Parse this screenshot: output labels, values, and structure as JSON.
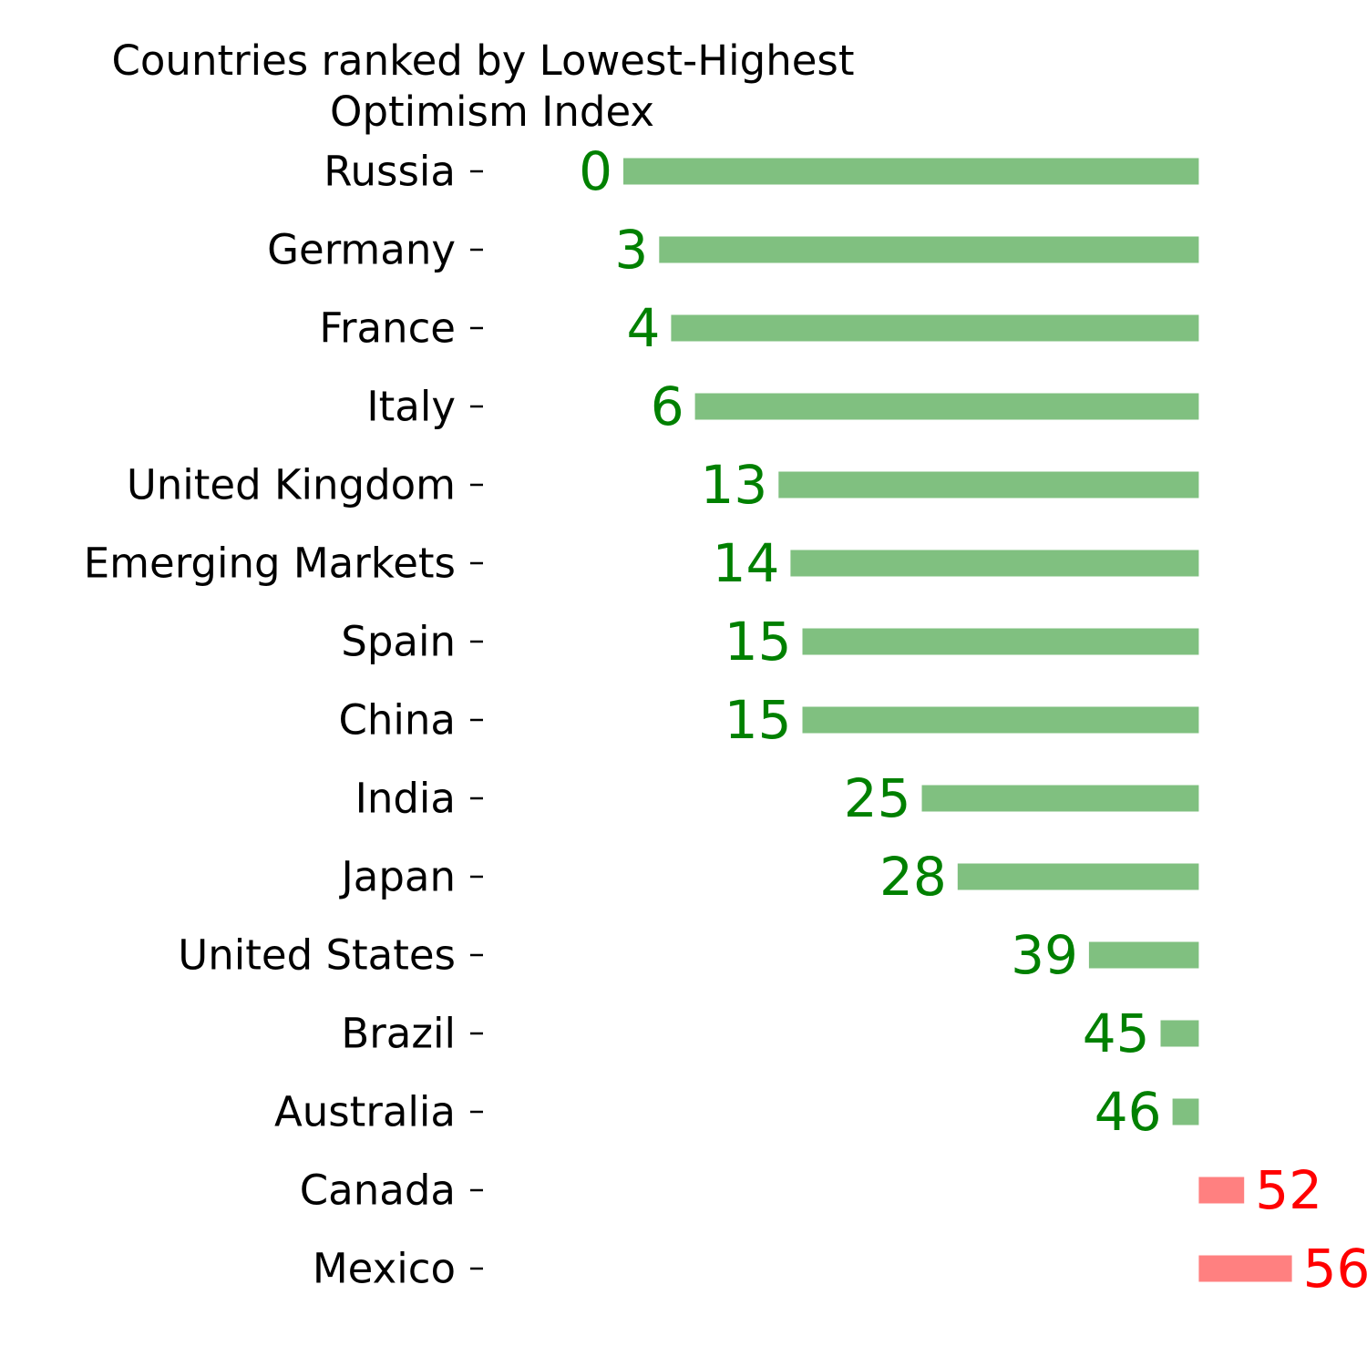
{
  "chart_data": {
    "type": "bar",
    "orientation": "horizontal",
    "title": "Countries ranked by Lowest-Highest Optimism Index",
    "title_lines": [
      "Countries ranked by Lowest-Highest",
      "Optimism Index"
    ],
    "categories": [
      "Russia",
      "Germany",
      "France",
      "Italy",
      "United Kingdom",
      "Emerging Markets",
      "Spain",
      "China",
      "India",
      "Japan",
      "United States",
      "Brazil",
      "Australia",
      "Canada",
      "Mexico"
    ],
    "values": [
      0,
      3,
      4,
      6,
      13,
      14,
      15,
      15,
      25,
      28,
      39,
      45,
      46,
      52,
      56
    ],
    "value_labels": [
      "0",
      "3",
      "4",
      "6",
      "13",
      "14",
      "15",
      "15",
      "25",
      "28",
      "39",
      "45",
      "46",
      "52",
      "56"
    ],
    "baseline": 48.2,
    "xlim": [
      -15,
      64
    ],
    "xlabel": "",
    "ylabel": "",
    "grid": false,
    "colors": {
      "below_bar": "#80c080",
      "below_text": "#008000",
      "above_bar": "#ff8080",
      "above_text": "#ff0000"
    }
  }
}
